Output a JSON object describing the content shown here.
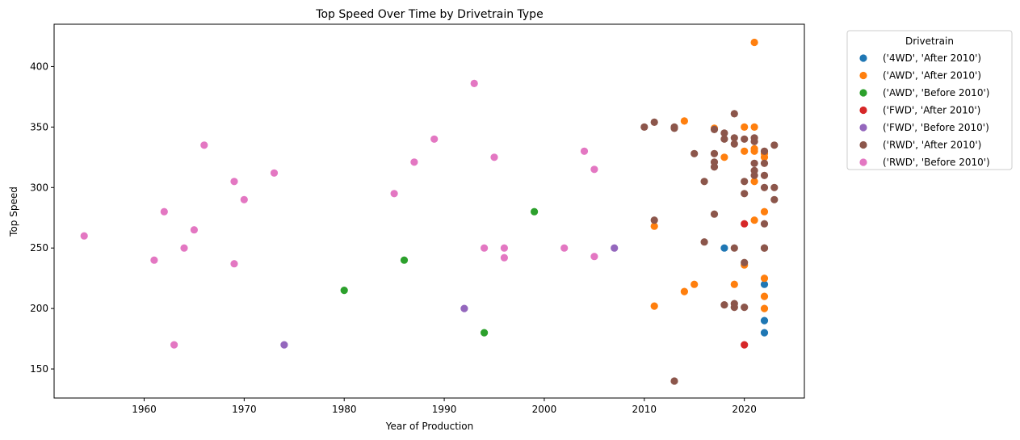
{
  "chart_data": {
    "type": "scatter",
    "title": "Top Speed Over Time by Drivetrain Type",
    "xlabel": "Year of Production",
    "ylabel": "Top Speed",
    "xlim": [
      1951,
      2026
    ],
    "ylim": [
      126,
      435
    ],
    "xticks": [
      1960,
      1970,
      1980,
      1990,
      2000,
      2010,
      2020
    ],
    "yticks": [
      150,
      200,
      250,
      300,
      350,
      400
    ],
    "grid": false,
    "legend": {
      "title": "Drivetrain",
      "placement": "outside-right-top"
    },
    "series": [
      {
        "name": "('4WD', 'After 2010')",
        "color": "#1f77b4",
        "points": [
          [
            2018,
            250
          ],
          [
            2022,
            220
          ],
          [
            2022,
            190
          ],
          [
            2022,
            180
          ]
        ]
      },
      {
        "name": "('AWD', 'After 2010')",
        "color": "#ff7f0e",
        "points": [
          [
            2021,
            420
          ],
          [
            2014,
            355
          ],
          [
            2017,
            349
          ],
          [
            2020,
            350
          ],
          [
            2021,
            350
          ],
          [
            2021,
            332
          ],
          [
            2021,
            330
          ],
          [
            2020,
            330
          ],
          [
            2022,
            328
          ],
          [
            2022,
            325
          ],
          [
            2018,
            325
          ],
          [
            2021,
            305
          ],
          [
            2022,
            280
          ],
          [
            2021,
            273
          ],
          [
            2011,
            268
          ],
          [
            2020,
            236
          ],
          [
            2022,
            225
          ],
          [
            2015,
            220
          ],
          [
            2019,
            220
          ],
          [
            2014,
            214
          ],
          [
            2022,
            210
          ],
          [
            2011,
            202
          ],
          [
            2022,
            200
          ]
        ]
      },
      {
        "name": "('AWD', 'Before 2010')",
        "color": "#2ca02c",
        "points": [
          [
            1999,
            280
          ],
          [
            1986,
            240
          ],
          [
            1980,
            215
          ],
          [
            1994,
            180
          ]
        ]
      },
      {
        "name": "('FWD', 'After 2010')",
        "color": "#d62728",
        "points": [
          [
            2020,
            270
          ],
          [
            2020,
            170
          ]
        ]
      },
      {
        "name": "('FWD', 'Before 2010')",
        "color": "#9467bd",
        "points": [
          [
            2007,
            250
          ],
          [
            1992,
            200
          ],
          [
            1974,
            170
          ]
        ]
      },
      {
        "name": "('RWD', 'After 2010')",
        "color": "#8c564b",
        "points": [
          [
            2010,
            350
          ],
          [
            2011,
            354
          ],
          [
            2013,
            350
          ],
          [
            2013,
            349
          ],
          [
            2019,
            361
          ],
          [
            2017,
            348
          ],
          [
            2018,
            345
          ],
          [
            2018,
            340
          ],
          [
            2019,
            341
          ],
          [
            2019,
            336
          ],
          [
            2020,
            340
          ],
          [
            2021,
            341
          ],
          [
            2021,
            338
          ],
          [
            2023,
            335
          ],
          [
            2022,
            330
          ],
          [
            2015,
            328
          ],
          [
            2017,
            328
          ],
          [
            2017,
            321
          ],
          [
            2017,
            317
          ],
          [
            2021,
            320
          ],
          [
            2022,
            320
          ],
          [
            2021,
            314
          ],
          [
            2021,
            310
          ],
          [
            2022,
            310
          ],
          [
            2016,
            305
          ],
          [
            2020,
            305
          ],
          [
            2022,
            300
          ],
          [
            2023,
            300
          ],
          [
            2020,
            295
          ],
          [
            2023,
            290
          ],
          [
            2017,
            278
          ],
          [
            2011,
            273
          ],
          [
            2022,
            270
          ],
          [
            2016,
            255
          ],
          [
            2019,
            250
          ],
          [
            2022,
            250
          ],
          [
            2022,
            250
          ],
          [
            2020,
            238
          ],
          [
            2018,
            203
          ],
          [
            2019,
            204
          ],
          [
            2019,
            201
          ],
          [
            2020,
            201
          ],
          [
            2013,
            140
          ]
        ]
      },
      {
        "name": "('RWD', 'Before 2010')",
        "color": "#e377c2",
        "points": [
          [
            1954,
            260
          ],
          [
            1961,
            240
          ],
          [
            1962,
            280
          ],
          [
            1963,
            170
          ],
          [
            1964,
            250
          ],
          [
            1965,
            265
          ],
          [
            1966,
            335
          ],
          [
            1969,
            305
          ],
          [
            1969,
            237
          ],
          [
            1970,
            290
          ],
          [
            1973,
            312
          ],
          [
            1985,
            295
          ],
          [
            1987,
            321
          ],
          [
            1989,
            340
          ],
          [
            1993,
            386
          ],
          [
            1994,
            250
          ],
          [
            1995,
            325
          ],
          [
            1996,
            250
          ],
          [
            1996,
            242
          ],
          [
            2002,
            250
          ],
          [
            2004,
            330
          ],
          [
            2005,
            315
          ],
          [
            2005,
            243
          ]
        ]
      }
    ]
  }
}
